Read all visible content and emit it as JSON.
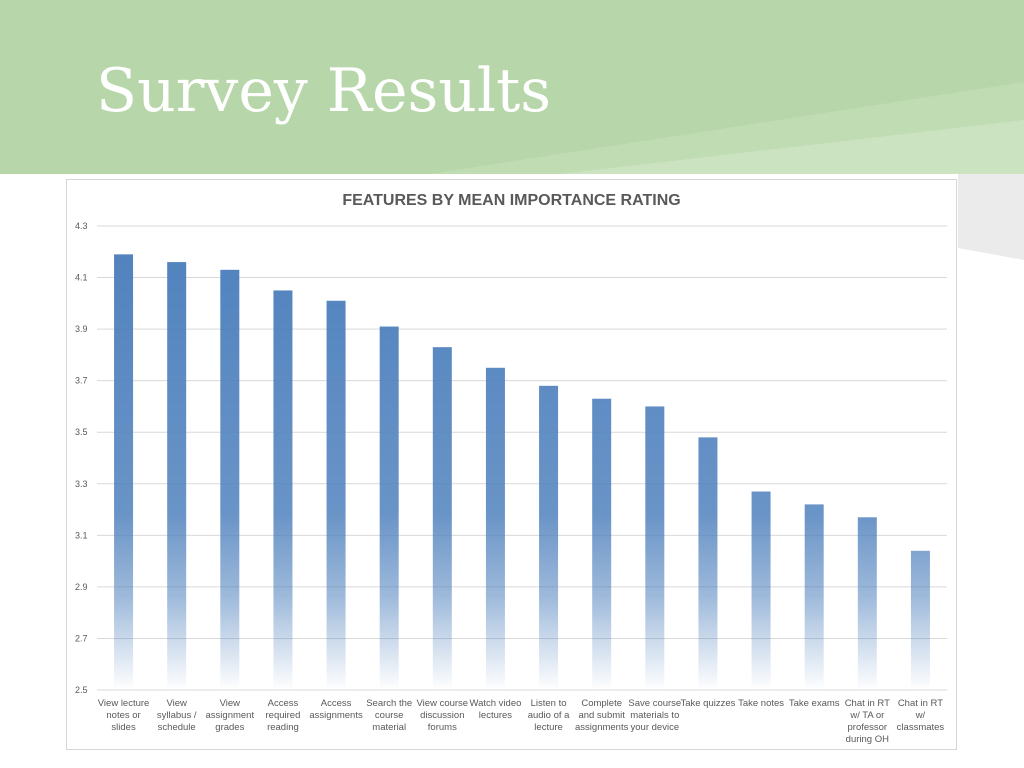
{
  "slide": {
    "title": "Survey Results",
    "colors": {
      "header": "#b7d7aa",
      "accent": "#4f81bd"
    }
  },
  "chart_data": {
    "type": "bar",
    "title": "FEATURES BY MEAN IMPORTANCE RATING",
    "xlabel": "",
    "ylabel": "",
    "ylim": [
      2.5,
      4.3
    ],
    "yticks": [
      "2.5",
      "2.7",
      "2.9",
      "3.1",
      "3.3",
      "3.5",
      "3.7",
      "3.9",
      "4.1",
      "4.3"
    ],
    "grid": true,
    "legend": "none",
    "categories": [
      "View lecture notes or slides",
      "View syllabus / schedule",
      "View assignment grades",
      "Access required reading",
      "Access assignments",
      "Search the course material",
      "View course discussion forums",
      "Watch video lectures",
      "Listen to audio of a lecture",
      "Complete and submit assignments",
      "Save course materials to your device",
      "Take quizzes",
      "Take notes",
      "Take exams",
      "Chat in RT w/ TA or professor during OH",
      "Chat in RT w/ classmates"
    ],
    "category_lines": [
      [
        "View lecture",
        "notes or",
        "slides"
      ],
      [
        "View",
        "syllabus /",
        "schedule"
      ],
      [
        "View",
        "assignment",
        "grades"
      ],
      [
        "Access",
        "required",
        "reading"
      ],
      [
        "Access",
        "assignments"
      ],
      [
        "Search the",
        "course",
        "material"
      ],
      [
        "View course",
        "discussion",
        "forums"
      ],
      [
        "Watch video",
        "lectures"
      ],
      [
        "Listen to",
        "audio of a",
        "lecture"
      ],
      [
        "Complete",
        "and submit",
        "assignments"
      ],
      [
        "Save course",
        "materials to",
        "your device"
      ],
      [
        "Take quizzes"
      ],
      [
        "Take notes"
      ],
      [
        "Take exams"
      ],
      [
        "Chat in RT",
        "w/ TA or",
        "professor",
        "during OH"
      ],
      [
        "Chat in RT",
        "w/",
        "classmates"
      ]
    ],
    "values": [
      4.19,
      4.16,
      4.13,
      4.05,
      4.01,
      3.91,
      3.83,
      3.75,
      3.68,
      3.63,
      3.6,
      3.48,
      3.27,
      3.22,
      3.17,
      3.04
    ],
    "bar_color": "#4f81bd"
  }
}
